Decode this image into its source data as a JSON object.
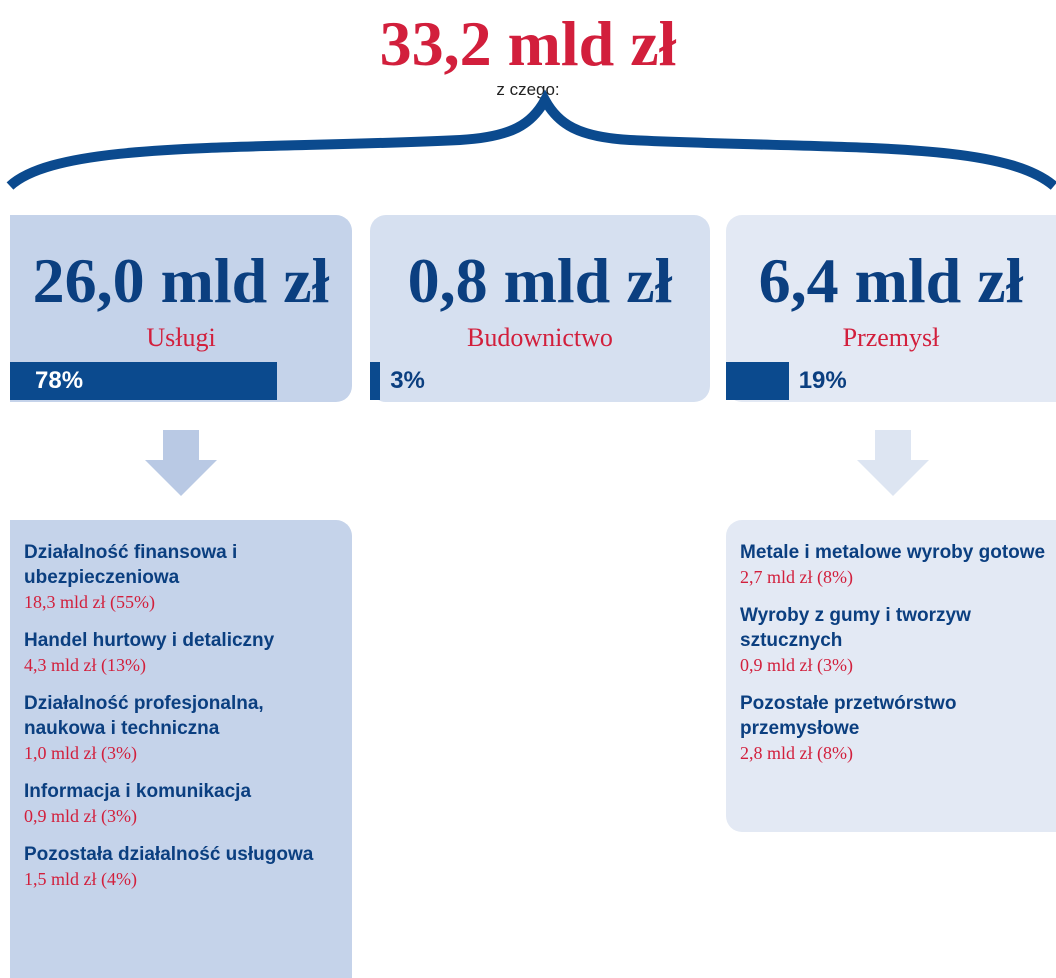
{
  "title": "33,2 mld zł",
  "subtitle": "z czego:",
  "sectors": [
    {
      "amount": "26,0 mld zł",
      "name": "Usługi",
      "share": {
        "value": 78,
        "label": "78%"
      }
    },
    {
      "amount": "0,8 mld zł",
      "name": "Budownictwo",
      "share": {
        "value": 3,
        "label": "3%"
      }
    },
    {
      "amount": "6,4 mld zł",
      "name": "Przemysł",
      "share": {
        "value": 19,
        "label": "19%"
      }
    }
  ],
  "services_breakdown": [
    {
      "title": "Działalność finansowa i ubezpieczeniowa",
      "value": "18,3 mld zł (55%)"
    },
    {
      "title": "Handel hurtowy i detaliczny",
      "value": "4,3 mld zł (13%)"
    },
    {
      "title": "Działalność profesjonalna, naukowa i techniczna",
      "value": "1,0 mld zł (3%)"
    },
    {
      "title": "Informacja i komunikacja",
      "value": "0,9 mld zł (3%)"
    },
    {
      "title": "Pozostała działalność usługowa",
      "value": "1,5 mld zł (4%)"
    }
  ],
  "industry_breakdown": [
    {
      "title": "Metale i metalowe wyroby gotowe",
      "value": "2,7 mld zł (8%)"
    },
    {
      "title": "Wyroby z gumy i tworzyw sztucznych",
      "value": "0,9 mld zł (3%)"
    },
    {
      "title": "Pozostałe przetwórstwo przemysłowe",
      "value": "2,8 mld zł (8%)"
    }
  ]
}
